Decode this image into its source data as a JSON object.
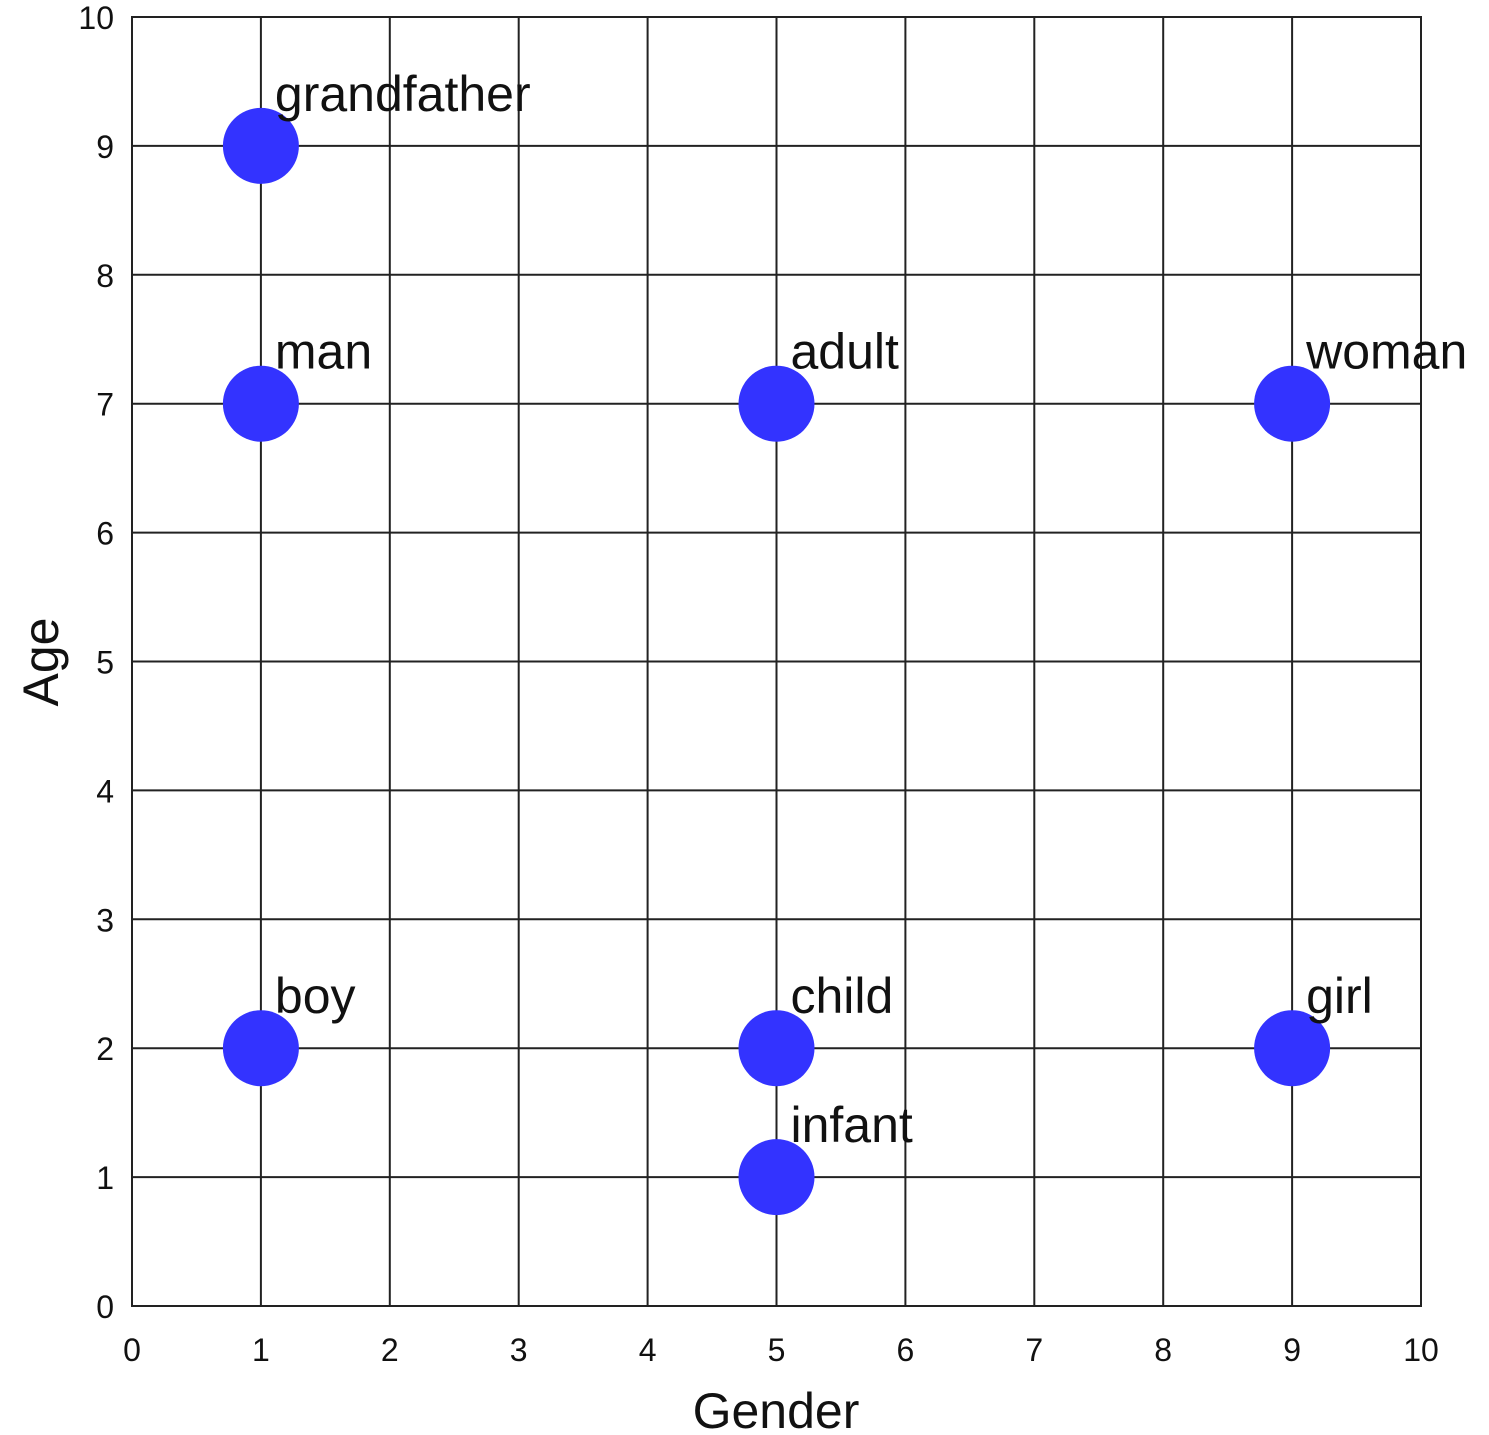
{
  "chart_data": {
    "type": "scatter",
    "xlabel": "Gender",
    "ylabel": "Age",
    "x": [
      1,
      1,
      5,
      9,
      1,
      5,
      9,
      5
    ],
    "values": [
      9,
      7,
      7,
      7,
      2,
      2,
      2,
      1
    ],
    "labels": [
      "grandfather",
      "man",
      "adult",
      "woman",
      "boy",
      "child",
      "girl",
      "infant"
    ],
    "color": "#3333ff",
    "xlim": [
      0,
      10
    ],
    "ylim": [
      0,
      10
    ],
    "xticks": [
      0,
      1,
      2,
      3,
      4,
      5,
      6,
      7,
      8,
      9,
      10
    ],
    "yticks": [
      0,
      1,
      2,
      3,
      4,
      5,
      6,
      7,
      8,
      9,
      10
    ],
    "grid": true
  }
}
